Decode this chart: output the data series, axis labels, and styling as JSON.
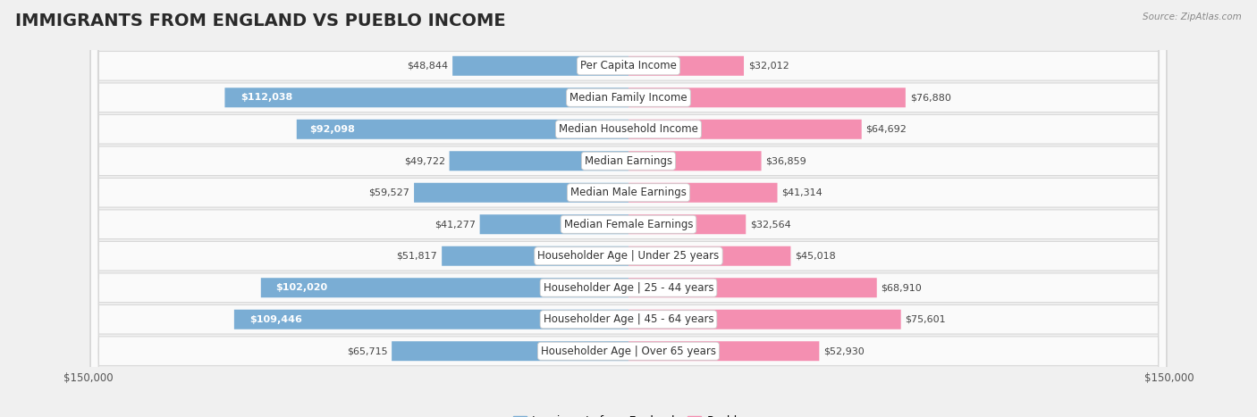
{
  "title": "IMMIGRANTS FROM ENGLAND VS PUEBLO INCOME",
  "source": "Source: ZipAtlas.com",
  "categories": [
    "Per Capita Income",
    "Median Family Income",
    "Median Household Income",
    "Median Earnings",
    "Median Male Earnings",
    "Median Female Earnings",
    "Householder Age | Under 25 years",
    "Householder Age | 25 - 44 years",
    "Householder Age | 45 - 64 years",
    "Householder Age | Over 65 years"
  ],
  "england_values": [
    48844,
    112038,
    92098,
    49722,
    59527,
    41277,
    51817,
    102020,
    109446,
    65715
  ],
  "pueblo_values": [
    32012,
    76880,
    64692,
    36859,
    41314,
    32564,
    45018,
    68910,
    75601,
    52930
  ],
  "england_color": "#7aadd4",
  "pueblo_color": "#f48fb1",
  "england_label": "Immigrants from England",
  "pueblo_label": "Pueblo",
  "max_value": 150000,
  "background_color": "#f0f0f0",
  "row_bg_color": "#fafafa",
  "row_border_color": "#d8d8d8",
  "title_fontsize": 14,
  "label_fontsize": 8.5,
  "value_fontsize": 8,
  "legend_fontsize": 9,
  "axis_label_fontsize": 8.5
}
